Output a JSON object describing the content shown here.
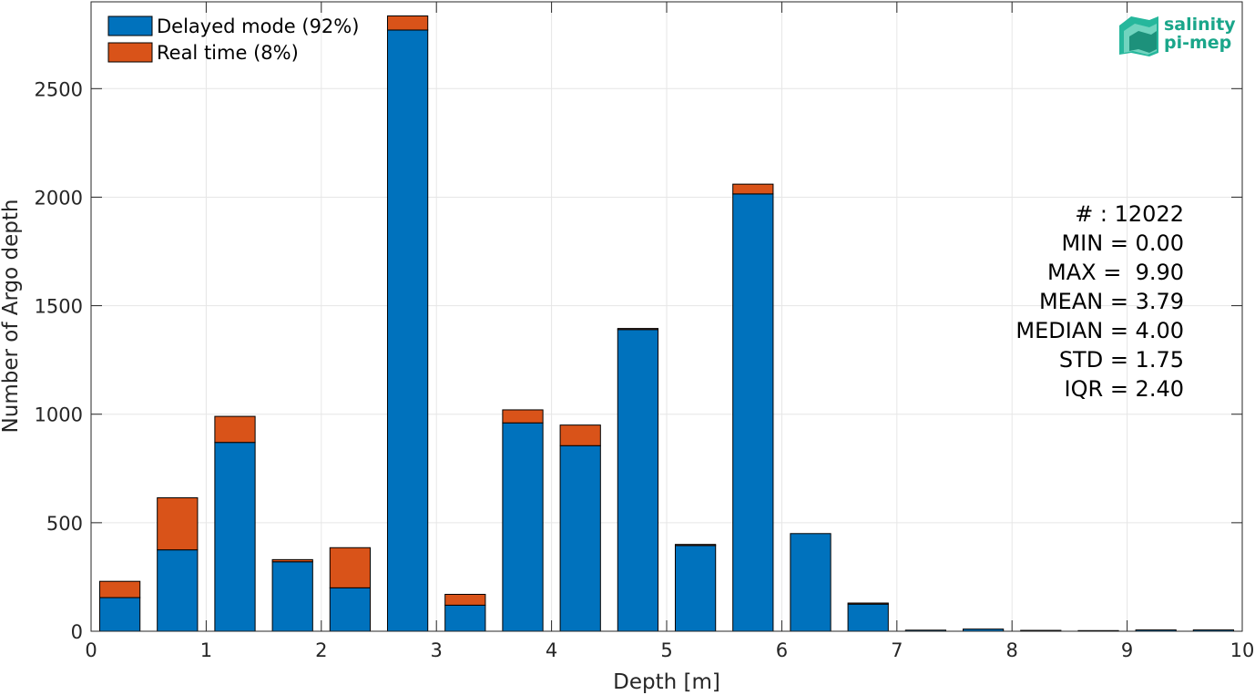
{
  "chart_data": {
    "type": "bar",
    "stacked": true,
    "xlabel": "Depth [m]",
    "ylabel": "Number of Argo depth",
    "xlim": [
      0,
      10
    ],
    "ylim": [
      0,
      2900
    ],
    "xticks": [
      "0",
      "1",
      "2",
      "3",
      "4",
      "5",
      "6",
      "7",
      "8",
      "9",
      "10"
    ],
    "yticks": [
      "0",
      "500",
      "1000",
      "1500",
      "2000",
      "2500"
    ],
    "grid": true,
    "legend_position": "top-left",
    "bin_width": 0.5,
    "x": [
      0.25,
      0.75,
      1.25,
      1.75,
      2.25,
      2.75,
      3.25,
      3.75,
      4.25,
      4.75,
      5.25,
      5.75,
      6.25,
      6.75,
      7.25,
      7.75,
      8.25,
      8.75,
      9.25,
      9.75
    ],
    "series": [
      {
        "name": "Delayed mode (92%)",
        "color": "#0072bd",
        "values": [
          155,
          375,
          870,
          320,
          200,
          2770,
          120,
          960,
          855,
          1390,
          395,
          2015,
          450,
          125,
          5,
          10,
          4,
          3,
          6,
          6
        ]
      },
      {
        "name": "Real time (8%)",
        "color": "#d95319",
        "values": [
          75,
          240,
          120,
          10,
          185,
          65,
          50,
          60,
          95,
          5,
          5,
          45,
          0,
          5,
          0,
          0,
          0,
          0,
          0,
          0
        ]
      }
    ],
    "stats": [
      "# : 12022",
      "MIN = 0.00",
      "MAX =  9.90",
      "MEAN = 3.79",
      "MEDIAN = 4.00",
      "STD = 1.75",
      "IQR = 2.40"
    ]
  },
  "logo": {
    "line1": "salinity",
    "line2": "pi-mep",
    "color": "#1aa68a"
  }
}
